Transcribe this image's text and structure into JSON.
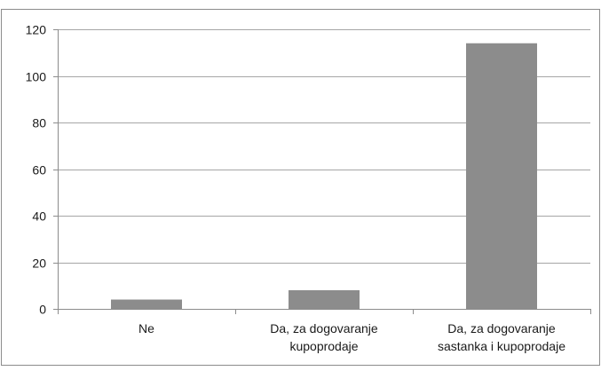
{
  "chart_data": {
    "type": "bar",
    "title": "",
    "xlabel": "",
    "ylabel": "",
    "categories": [
      [
        "Ne"
      ],
      [
        "Da, za dogovaranje",
        "kupoprodaje"
      ],
      [
        "Da, za dogovaranje",
        "sastanka i kupoprodaje"
      ]
    ],
    "values": [
      4,
      8,
      114
    ],
    "ylim": [
      0,
      120
    ],
    "yticks": [
      0,
      20,
      40,
      60,
      80,
      100,
      120
    ],
    "grid": true,
    "legend": "none",
    "bar_color": "#8c8c8c",
    "grid_color": "#a6a6a6",
    "axis_color": "#8c8c8c",
    "frame_color": "#8c8c8c"
  }
}
